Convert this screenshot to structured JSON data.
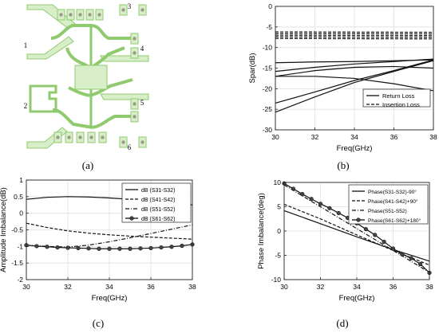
{
  "captions": [
    "(a)",
    "(b)",
    "(c)",
    "(d)"
  ],
  "layout": {
    "ports": [
      "1",
      "2",
      "3",
      "4",
      "5",
      "6"
    ],
    "colors": {
      "trace": "#8fca6e",
      "trace_fill": "#d8eec9",
      "pad": "#c9c9b4",
      "via": "#9a9a88"
    }
  },
  "chart_data": [
    {
      "type": "line",
      "ylabel": "Spar(dB)",
      "xlabel": "Freq(GHz)",
      "xlim": [
        30,
        38
      ],
      "ylim": [
        -30,
        0
      ],
      "xticks": [
        30,
        32,
        34,
        36,
        38
      ],
      "yticks": [
        -30,
        -25,
        -20,
        -15,
        -10,
        -5,
        0
      ],
      "legend": {
        "position": "bottom-right",
        "entries": [
          {
            "label": "Return Loss",
            "style": "solid"
          },
          {
            "label": "Insertion Loss",
            "style": "dashed"
          }
        ]
      },
      "series": [
        {
          "style": "dashed",
          "x": [
            30,
            38
          ],
          "y": [
            -6.2,
            -6.3
          ]
        },
        {
          "style": "dashed",
          "x": [
            30,
            38
          ],
          "y": [
            -6.6,
            -6.7
          ]
        },
        {
          "style": "dashed",
          "x": [
            30,
            38
          ],
          "y": [
            -7.0,
            -7.1
          ]
        },
        {
          "style": "dashed",
          "x": [
            30,
            38
          ],
          "y": [
            -7.4,
            -7.5
          ]
        },
        {
          "style": "dashed",
          "x": [
            30,
            38
          ],
          "y": [
            -7.8,
            -7.9
          ]
        },
        {
          "style": "solid",
          "x": [
            30,
            32,
            34,
            36,
            38
          ],
          "y": [
            -13.7,
            -13.5,
            -13.4,
            -13.2,
            -13.0
          ]
        },
        {
          "style": "solid",
          "x": [
            30,
            32,
            34,
            36,
            38
          ],
          "y": [
            -15.8,
            -14.8,
            -14.0,
            -13.4,
            -12.8
          ]
        },
        {
          "style": "solid",
          "x": [
            30,
            32,
            34,
            36,
            38
          ],
          "y": [
            -17.0,
            -15.6,
            -14.8,
            -14.6,
            -15.0
          ]
        },
        {
          "style": "solid",
          "x": [
            30,
            32,
            34,
            36,
            38
          ],
          "y": [
            -17.0,
            -17.0,
            -17.5,
            -18.8,
            -20.5
          ]
        },
        {
          "style": "solid",
          "x": [
            30,
            32,
            34,
            36,
            38
          ],
          "y": [
            -23.5,
            -20.8,
            -18.0,
            -15.6,
            -13.0
          ]
        },
        {
          "style": "solid",
          "x": [
            30,
            32,
            34,
            36,
            38
          ],
          "y": [
            -25.7,
            -22.0,
            -18.5,
            -15.8,
            -13.2
          ]
        }
      ]
    },
    {
      "type": "line",
      "ylabel": "Amplitude Imbalance(dB)",
      "xlabel": "Freq(GHz)",
      "xlim": [
        30,
        38
      ],
      "ylim": [
        -2,
        1
      ],
      "xticks": [
        30,
        32,
        34,
        36,
        38
      ],
      "yticks": [
        -2,
        -1.5,
        -1,
        -0.5,
        0,
        0.5,
        1
      ],
      "legend": {
        "position": "top-right"
      },
      "series": [
        {
          "name": "dB (S31-S32)",
          "style": "solid",
          "x": [
            30,
            31,
            32,
            33,
            34,
            35,
            36,
            37,
            38
          ],
          "y": [
            0.42,
            0.48,
            0.5,
            0.49,
            0.46,
            0.42,
            0.37,
            0.31,
            0.25
          ]
        },
        {
          "name": "dB (S41-S42)",
          "style": "dashed",
          "x": [
            30,
            31,
            32,
            33,
            34,
            35,
            36,
            37,
            38
          ],
          "y": [
            -0.3,
            -0.43,
            -0.53,
            -0.6,
            -0.65,
            -0.69,
            -0.72,
            -0.75,
            -0.78
          ]
        },
        {
          "name": "dB (S51-S52)",
          "style": "dashdot",
          "x": [
            30,
            31,
            32,
            33,
            34,
            35,
            36,
            37,
            38
          ],
          "y": [
            -0.96,
            -1.0,
            -1.02,
            -0.96,
            -0.86,
            -0.74,
            -0.61,
            -0.48,
            -0.35
          ]
        },
        {
          "name": "dB (S61-S62)",
          "style": "solid-marker",
          "x": [
            30,
            30.5,
            31,
            31.5,
            32,
            32.5,
            33,
            33.5,
            34,
            34.5,
            35,
            35.5,
            36,
            36.5,
            37,
            37.5,
            38
          ],
          "y": [
            -0.96,
            -0.99,
            -1.01,
            -1.03,
            -1.04,
            -1.05,
            -1.06,
            -1.07,
            -1.07,
            -1.07,
            -1.07,
            -1.06,
            -1.05,
            -1.03,
            -1.01,
            -0.98,
            -0.94
          ]
        }
      ]
    },
    {
      "type": "line",
      "ylabel": "Phase Imbalance(deg)",
      "xlabel": "Freq(GHz)",
      "xlim": [
        30,
        38
      ],
      "ylim": [
        -10,
        10
      ],
      "xticks": [
        30,
        32,
        34,
        36,
        38
      ],
      "yticks": [
        -10,
        -5,
        0,
        5,
        10
      ],
      "legend": {
        "position": "top-right"
      },
      "series": [
        {
          "name": "Phase(S31-S32)-90°",
          "style": "solid",
          "x": [
            30,
            32,
            34,
            36,
            38
          ],
          "y": [
            4.2,
            1.5,
            -1.2,
            -3.8,
            -6.2
          ]
        },
        {
          "name": "Phase(S41-S42)+90°",
          "style": "dashed",
          "x": [
            30,
            32,
            34,
            36,
            38
          ],
          "y": [
            5.5,
            2.5,
            -0.8,
            -4.0,
            -7.0
          ]
        },
        {
          "name": "Phase(S51-S52)",
          "style": "dashdot",
          "x": [
            30,
            32,
            34,
            36,
            38
          ],
          "y": [
            9.5,
            5.0,
            0.5,
            -4.0,
            -8.5
          ]
        },
        {
          "name": "Phase(S61-S62)+180°",
          "style": "solid-marker",
          "x": [
            30,
            30.5,
            31,
            31.5,
            32,
            32.5,
            33,
            33.5,
            34,
            34.5,
            35,
            35.5,
            36,
            36.5,
            37,
            37.5,
            38
          ],
          "y": [
            9.8,
            8.7,
            7.6,
            6.6,
            5.6,
            4.7,
            3.7,
            2.7,
            1.6,
            0.4,
            -0.8,
            -2.2,
            -3.6,
            -4.8,
            -5.6,
            -6.8,
            -8.6
          ]
        }
      ]
    }
  ]
}
